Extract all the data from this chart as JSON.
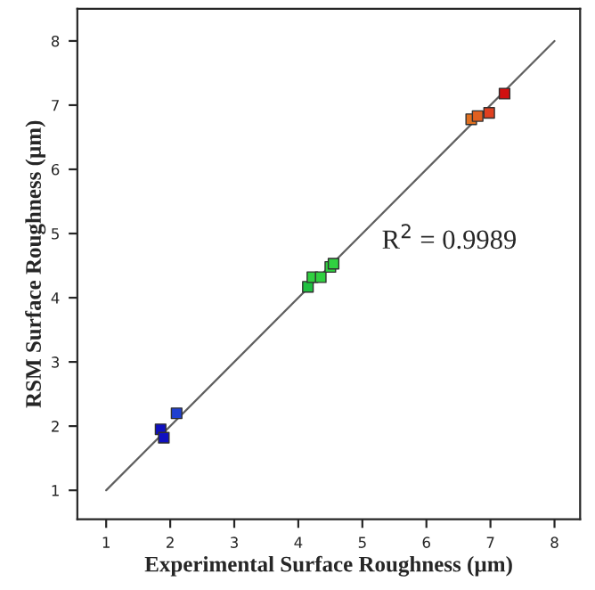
{
  "chart_data": {
    "type": "scatter",
    "xlabel": "Experimental Surface Roughness (µm)",
    "ylabel": "RSM Surface Roughness (µm)",
    "xlim": [
      0.55,
      8.4
    ],
    "ylim": [
      0.55,
      8.5
    ],
    "xticks": [
      1,
      2,
      3,
      4,
      5,
      6,
      7,
      8
    ],
    "yticks": [
      1,
      2,
      3,
      4,
      5,
      6,
      7,
      8
    ],
    "grid": false,
    "annotations": [
      "R$^{2}$ = 0.9989"
    ],
    "series": [
      {
        "marker": "square",
        "x": [
          1.85,
          1.88,
          1.9,
          2.1,
          4.15,
          4.22,
          4.35,
          4.5,
          4.55,
          6.7,
          6.8,
          6.98,
          7.22
        ],
        "values": [
          1.95,
          null,
          1.82,
          2.2,
          4.17,
          4.32,
          4.32,
          4.48,
          4.53,
          6.78,
          6.83,
          6.88,
          7.18
        ],
        "colors": [
          "#1010c0",
          "#1010c0",
          "#1010c0",
          "#2040d0",
          "#20c040",
          "#30d040",
          "#30d040",
          "#30d040",
          "#30d040",
          "#e07020",
          "#e06020",
          "#e04020",
          "#d01010"
        ]
      },
      {
        "type": "line",
        "x": [
          1,
          8
        ],
        "values": [
          1,
          8
        ],
        "color": "#606060"
      }
    ]
  }
}
